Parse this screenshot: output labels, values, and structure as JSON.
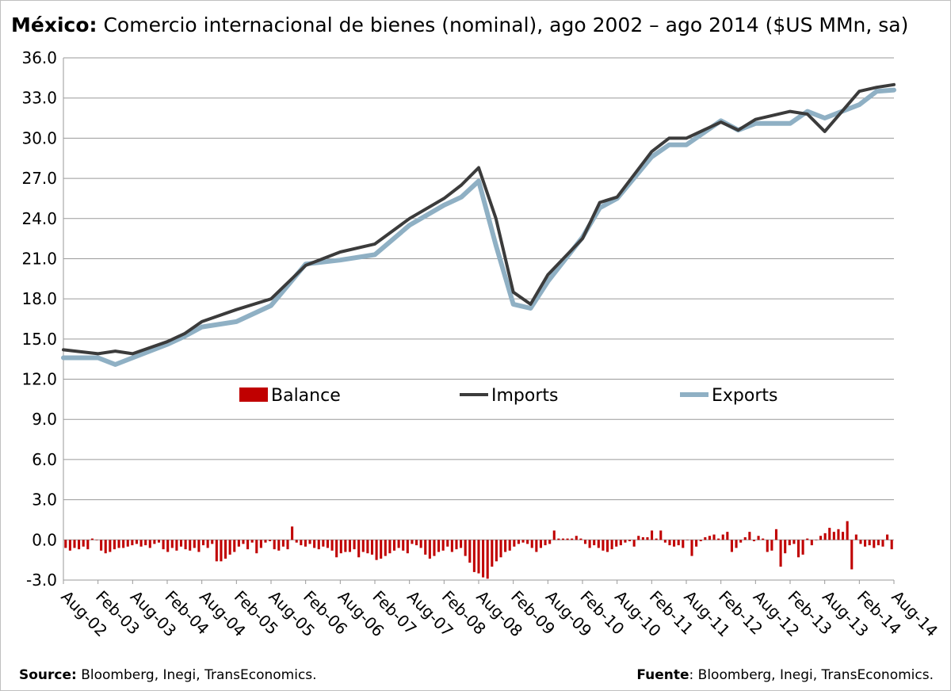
{
  "title": {
    "bold": "México:",
    "rest": " Comercio internacional de bienes (nominal), ago 2002 – ago 2014 ($US MMn, sa)"
  },
  "source_left": {
    "label": "Source:",
    "text": " Bloomberg, Inegi, TransEconomics."
  },
  "source_right": {
    "label": "Fuente",
    "text": ": Bloomberg, Inegi, TransEconomics."
  },
  "chart_data": {
    "type": "line",
    "title": "México: Comercio internacional de bienes (nominal), ago 2002 – ago 2014 ($US MMn, sa)",
    "xlabel": "",
    "ylabel": "",
    "ylim": [
      -3.0,
      36.0
    ],
    "yticks": [
      "36.0",
      "33.0",
      "30.0",
      "27.0",
      "24.0",
      "21.0",
      "18.0",
      "15.0",
      "12.0",
      "9.0",
      "6.0",
      "3.0",
      "0.0",
      "-3.0"
    ],
    "ytick_values": [
      36,
      33,
      30,
      27,
      24,
      21,
      18,
      15,
      12,
      9,
      6,
      3,
      0,
      -3
    ],
    "grid": true,
    "legend_position": "center",
    "x_tick_labels": [
      "Aug-02",
      "Feb-03",
      "Aug-03",
      "Feb-04",
      "Aug-04",
      "Feb-05",
      "Aug-05",
      "Feb-06",
      "Aug-06",
      "Feb-07",
      "Aug-07",
      "Feb-08",
      "Aug-08",
      "Feb-09",
      "Aug-09",
      "Feb-10",
      "Aug-10",
      "Feb-11",
      "Aug-11",
      "Feb-12",
      "Aug-12",
      "Feb-13",
      "Aug-13",
      "Feb-14",
      "Aug-14"
    ],
    "x_start": "2002-08",
    "x_end": "2014-08",
    "series": [
      {
        "name": "Balance",
        "kind": "bar",
        "color": "#c00000",
        "values": [
          -0.6,
          -0.8,
          -0.6,
          -0.7,
          -0.5,
          -0.7,
          0.1,
          0.0,
          -0.8,
          -1.0,
          -0.9,
          -0.7,
          -0.6,
          -0.6,
          -0.5,
          -0.4,
          -0.3,
          -0.5,
          -0.4,
          -0.6,
          -0.3,
          -0.2,
          -0.7,
          -0.9,
          -0.6,
          -0.8,
          -0.5,
          -0.7,
          -0.8,
          -0.6,
          -0.9,
          -0.4,
          -0.6,
          -0.3,
          -1.6,
          -1.6,
          -1.4,
          -1.1,
          -0.9,
          -0.5,
          -0.3,
          -0.7,
          -0.2,
          -1.0,
          -0.6,
          -0.2,
          -0.1,
          -0.7,
          -0.8,
          -0.5,
          -0.7,
          1.0,
          -0.2,
          -0.4,
          -0.5,
          -0.3,
          -0.6,
          -0.7,
          -0.5,
          -0.6,
          -0.8,
          -1.3,
          -1.0,
          -0.9,
          -0.9,
          -0.7,
          -1.3,
          -0.9,
          -1.0,
          -1.1,
          -1.5,
          -1.4,
          -1.2,
          -1.0,
          -0.8,
          -0.6,
          -0.8,
          -1.0,
          -0.3,
          -0.4,
          -0.6,
          -1.1,
          -1.4,
          -1.2,
          -0.9,
          -0.8,
          -0.5,
          -0.9,
          -0.7,
          -0.6,
          -1.2,
          -1.7,
          -2.4,
          -2.5,
          -2.8,
          -2.9,
          -2.0,
          -1.6,
          -1.3,
          -0.9,
          -0.8,
          -0.5,
          -0.3,
          -0.2,
          -0.3,
          -0.6,
          -0.9,
          -0.6,
          -0.4,
          -0.3,
          0.7,
          0.1,
          0.1,
          0.1,
          0.1,
          0.3,
          0.1,
          -0.3,
          -0.6,
          -0.4,
          -0.6,
          -0.8,
          -0.9,
          -0.7,
          -0.5,
          -0.4,
          -0.2,
          -0.1,
          -0.5,
          0.3,
          0.2,
          0.2,
          0.7,
          0.1,
          0.7,
          -0.2,
          -0.4,
          -0.5,
          -0.4,
          -0.6,
          0.0,
          -1.2,
          -0.5,
          -0.1,
          0.2,
          0.3,
          0.4,
          0.1,
          0.4,
          0.6,
          -0.9,
          -0.6,
          -0.2,
          0.2,
          0.6,
          -0.1,
          0.3,
          0.1,
          -0.9,
          -0.8,
          0.8,
          -2.0,
          -1.0,
          -0.4,
          -0.3,
          -1.3,
          -1.1,
          0.1,
          -0.4,
          0.0,
          0.3,
          0.5,
          0.9,
          0.6,
          0.8,
          0.6,
          1.4,
          -2.2,
          0.4,
          -0.3,
          -0.5,
          -0.4,
          -0.6,
          -0.4,
          -0.5,
          0.4,
          -0.7
        ]
      },
      {
        "name": "Imports",
        "kind": "line",
        "color": "#3b3b3b",
        "points": [
          [
            "2002-08",
            14.2
          ],
          [
            "2003-02",
            13.9
          ],
          [
            "2003-05",
            14.1
          ],
          [
            "2003-08",
            13.9
          ],
          [
            "2004-02",
            14.8
          ],
          [
            "2004-05",
            15.4
          ],
          [
            "2004-08",
            16.3
          ],
          [
            "2005-02",
            17.2
          ],
          [
            "2005-08",
            18.0
          ],
          [
            "2006-02",
            20.5
          ],
          [
            "2006-08",
            21.5
          ],
          [
            "2007-02",
            22.1
          ],
          [
            "2007-08",
            24.0
          ],
          [
            "2008-02",
            25.5
          ],
          [
            "2008-05",
            26.5
          ],
          [
            "2008-08",
            27.8
          ],
          [
            "2008-11",
            24.0
          ],
          [
            "2009-02",
            18.5
          ],
          [
            "2009-05",
            17.6
          ],
          [
            "2009-08",
            19.8
          ],
          [
            "2010-02",
            22.5
          ],
          [
            "2010-05",
            25.2
          ],
          [
            "2010-08",
            25.6
          ],
          [
            "2011-02",
            29.0
          ],
          [
            "2011-05",
            30.0
          ],
          [
            "2011-08",
            30.0
          ],
          [
            "2012-02",
            31.2
          ],
          [
            "2012-05",
            30.6
          ],
          [
            "2012-08",
            31.4
          ],
          [
            "2013-02",
            32.0
          ],
          [
            "2013-05",
            31.8
          ],
          [
            "2013-08",
            30.5
          ],
          [
            "2014-02",
            33.5
          ],
          [
            "2014-05",
            33.8
          ],
          [
            "2014-08",
            34.0
          ]
        ]
      },
      {
        "name": "Exports",
        "kind": "line",
        "color": "#8fb0c4",
        "points": [
          [
            "2002-08",
            13.6
          ],
          [
            "2003-02",
            13.6
          ],
          [
            "2003-05",
            13.1
          ],
          [
            "2003-08",
            13.6
          ],
          [
            "2004-02",
            14.6
          ],
          [
            "2004-05",
            15.2
          ],
          [
            "2004-08",
            15.9
          ],
          [
            "2005-02",
            16.3
          ],
          [
            "2005-08",
            17.5
          ],
          [
            "2006-02",
            20.6
          ],
          [
            "2006-08",
            20.9
          ],
          [
            "2007-02",
            21.3
          ],
          [
            "2007-08",
            23.5
          ],
          [
            "2008-02",
            25.0
          ],
          [
            "2008-05",
            25.6
          ],
          [
            "2008-08",
            26.8
          ],
          [
            "2008-11",
            22.0
          ],
          [
            "2009-02",
            17.6
          ],
          [
            "2009-05",
            17.3
          ],
          [
            "2009-08",
            19.3
          ],
          [
            "2010-02",
            22.6
          ],
          [
            "2010-05",
            24.8
          ],
          [
            "2010-08",
            25.5
          ],
          [
            "2011-02",
            28.6
          ],
          [
            "2011-05",
            29.5
          ],
          [
            "2011-08",
            29.5
          ],
          [
            "2012-02",
            31.3
          ],
          [
            "2012-05",
            30.6
          ],
          [
            "2012-08",
            31.1
          ],
          [
            "2013-02",
            31.1
          ],
          [
            "2013-05",
            32.0
          ],
          [
            "2013-08",
            31.5
          ],
          [
            "2014-02",
            32.5
          ],
          [
            "2014-05",
            33.5
          ],
          [
            "2014-08",
            33.6
          ]
        ]
      }
    ]
  }
}
